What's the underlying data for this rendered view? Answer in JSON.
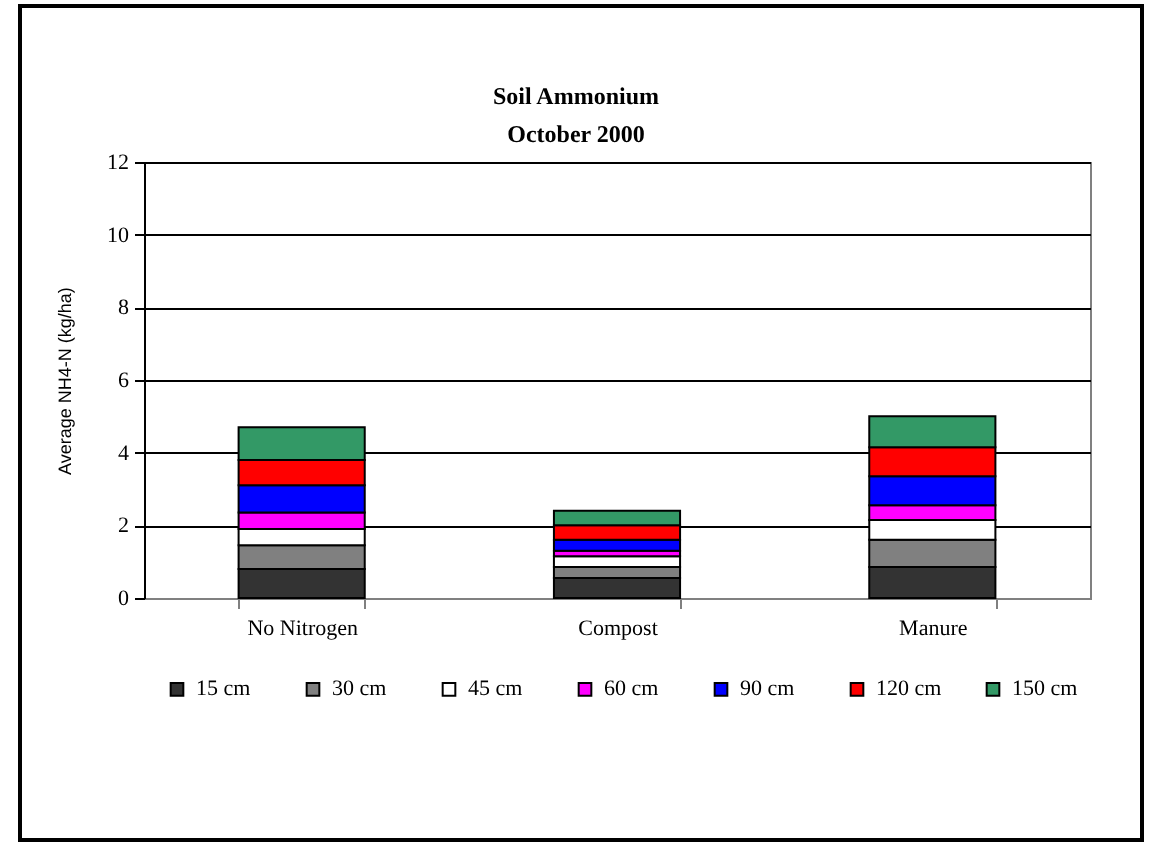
{
  "chart_data": {
    "type": "bar",
    "title": "Soil Ammonium",
    "subtitle": "October 2000",
    "ylabel": "Average NH4-N (kg/ha)",
    "categories": [
      "No Nitrogen",
      "Compost",
      "Manure"
    ],
    "series": [
      {
        "name": "15 cm",
        "color": "#333333",
        "values": [
          0.8,
          0.55,
          0.85
        ]
      },
      {
        "name": "30 cm",
        "color": "#808080",
        "values": [
          0.65,
          0.3,
          0.75
        ]
      },
      {
        "name": "45 cm",
        "color": "#ffffff",
        "values": [
          0.45,
          0.3,
          0.55
        ]
      },
      {
        "name": "60 cm",
        "color": "#ff00ff",
        "values": [
          0.45,
          0.15,
          0.4
        ]
      },
      {
        "name": "90 cm",
        "color": "#0000ff",
        "values": [
          0.75,
          0.3,
          0.8
        ]
      },
      {
        "name": "120 cm",
        "color": "#ff0000",
        "values": [
          0.7,
          0.4,
          0.8
        ]
      },
      {
        "name": "150 cm",
        "color": "#339966",
        "values": [
          0.9,
          0.4,
          0.85
        ]
      }
    ],
    "stacked": true,
    "ylim": [
      0,
      12
    ],
    "yticks": [
      0,
      2,
      4,
      6,
      8,
      10,
      12
    ],
    "grid": "y",
    "legend": "bottom"
  }
}
